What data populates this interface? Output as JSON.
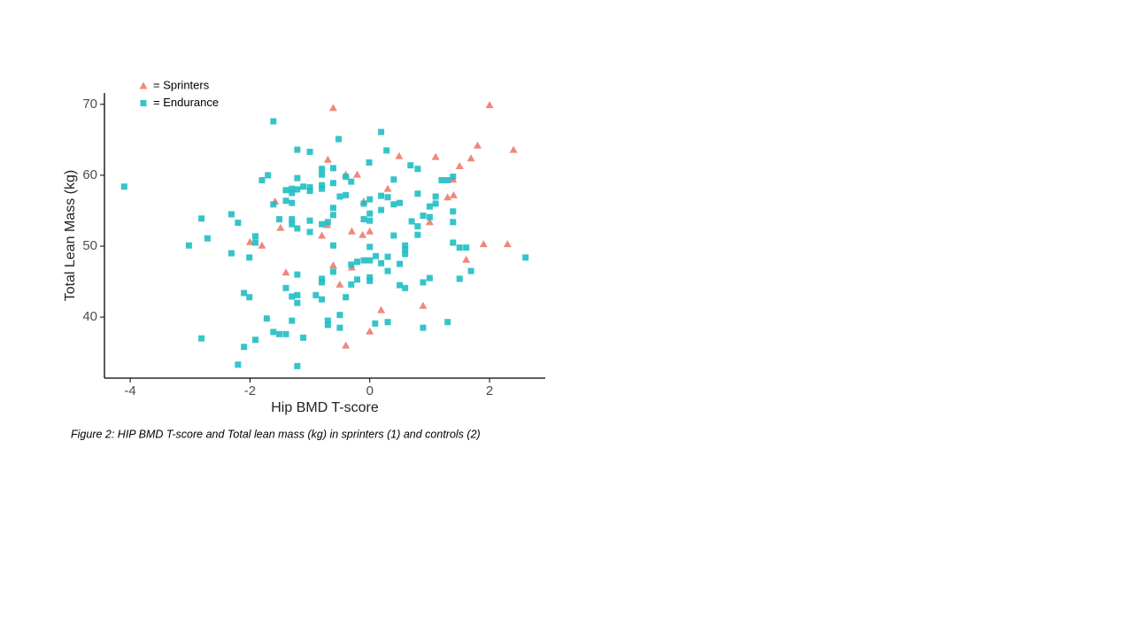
{
  "chart_data": {
    "type": "scatter",
    "xlabel": "Hip BMD T-score",
    "ylabel": "Total Lean Mass (kg)",
    "caption": "Figure 2: HIP BMD T-score and Total lean mass (kg) in sprinters (1) and controls (2)",
    "xlim": [
      -4.43,
      2.93
    ],
    "xticks": [
      -4,
      -2,
      0,
      2
    ],
    "ylim": [
      31.4,
      71.6
    ],
    "yticks": [
      40,
      50,
      60,
      70
    ],
    "legend": "top-left",
    "series": [
      {
        "name": "= Sprinters",
        "color": "#ee7b6e",
        "marker": "triangle",
        "x": [
          -0.61,
          2.0,
          1.8,
          2.4,
          -0.7,
          0.49,
          1.1,
          1.69,
          1.5,
          -0.4,
          -0.21,
          1.39,
          0.3,
          -0.1,
          1.3,
          1.4,
          -1.58,
          -1.49,
          -0.71,
          -0.8,
          -0.3,
          -0.12,
          0,
          1.0,
          -2.0,
          -1.8,
          1.9,
          2.3,
          1.61,
          -0.61,
          -0.3,
          -1.4,
          -0.5,
          0.19,
          0.89,
          0,
          -0.4
        ],
        "values": [
          69.5,
          69.9,
          64.2,
          63.6,
          62.2,
          62.7,
          62.6,
          62.4,
          61.3,
          60.1,
          60.1,
          59.4,
          58.1,
          56.3,
          56.9,
          57.2,
          56.3,
          52.6,
          53.0,
          51.5,
          52.1,
          51.6,
          52.1,
          53.4,
          50.6,
          50.1,
          50.3,
          50.3,
          48.1,
          47.3,
          47.0,
          46.3,
          44.6,
          41.0,
          41.6,
          38.0,
          36.0
        ]
      },
      {
        "name": "= Endurance",
        "color": "#1fbec4",
        "marker": "square",
        "x": [
          -4.1,
          -1.61,
          -0.52,
          0.19,
          -1.21,
          -1.0,
          0.28,
          0.68,
          0.8,
          -0.01,
          -0.8,
          -0.61,
          -0.8,
          -1.7,
          -1.8,
          -1.21,
          -0.61,
          -0.31,
          -0.4,
          0.4,
          1.2,
          1.3,
          1.39,
          -1.4,
          -1.3,
          -1.21,
          -1.11,
          -1.0,
          -1.0,
          -1.3,
          -0.8,
          -0.8,
          -0.5,
          -0.4,
          0.19,
          0.3,
          0.8,
          1.1,
          -1.61,
          -1.4,
          -1.3,
          -0.61,
          -0.1,
          0,
          0.4,
          0.5,
          1.1,
          1.0,
          0.19,
          0,
          1.39,
          -2.31,
          -2.81,
          -2.2,
          -1.51,
          -1.3,
          -1.3,
          -1.0,
          -0.8,
          -0.7,
          -0.61,
          -0.1,
          0,
          0.7,
          0.89,
          1.0,
          0.8,
          1.39,
          -1.21,
          -1.0,
          0.4,
          0.8,
          -1.91,
          -2.71,
          -3.02,
          -1.91,
          -0.61,
          0,
          0.59,
          0.59,
          0.59,
          1.39,
          1.5,
          1.61,
          -2.31,
          -2.01,
          0.1,
          -0.1,
          0,
          0.3,
          -0.21,
          -0.31,
          0.19,
          0.5,
          2.6,
          1.69,
          -0.61,
          0.3,
          -1.21,
          -0.8,
          -0.8,
          -0.21,
          0,
          0,
          1.5,
          1.0,
          0.89,
          -0.31,
          -1.4,
          0.5,
          0.59,
          -2.1,
          -2.01,
          -1.3,
          -1.21,
          -0.9,
          -0.8,
          -0.4,
          -1.21,
          -0.5,
          -1.72,
          -1.3,
          -0.7,
          -0.7,
          -0.5,
          0.09,
          0.3,
          0.89,
          1.3,
          -1.61,
          -1.51,
          -1.4,
          -1.11,
          -2.81,
          -1.91,
          -2.1,
          -2.2,
          -1.21
        ],
        "values": [
          58.4,
          67.6,
          65.1,
          66.1,
          63.6,
          63.3,
          63.5,
          61.4,
          60.9,
          61.8,
          60.9,
          61.0,
          60.1,
          60.0,
          59.3,
          59.6,
          58.9,
          59.1,
          59.8,
          59.4,
          59.3,
          59.3,
          59.8,
          57.9,
          58.1,
          58.0,
          58.4,
          58.3,
          57.8,
          57.5,
          58.6,
          58.1,
          57.0,
          57.2,
          57.1,
          56.9,
          57.4,
          57.0,
          55.9,
          56.4,
          56.1,
          55.4,
          56.0,
          56.6,
          55.9,
          56.1,
          56.0,
          55.6,
          55.1,
          54.6,
          54.9,
          54.5,
          53.9,
          53.3,
          53.8,
          53.8,
          53.1,
          53.6,
          53.1,
          53.4,
          54.4,
          53.8,
          53.6,
          53.5,
          54.3,
          54.1,
          52.8,
          53.4,
          52.5,
          52.0,
          51.5,
          51.6,
          51.4,
          51.1,
          50.1,
          50.5,
          50.1,
          49.9,
          50.1,
          49.5,
          48.9,
          50.5,
          49.8,
          49.8,
          49.0,
          48.4,
          48.6,
          48.0,
          48.0,
          48.5,
          47.8,
          47.4,
          47.6,
          47.5,
          48.4,
          46.5,
          46.4,
          46.5,
          46.0,
          45.4,
          44.9,
          45.3,
          45.6,
          45.1,
          45.4,
          45.5,
          44.9,
          44.6,
          44.1,
          44.5,
          44.1,
          43.4,
          42.8,
          42.9,
          43.1,
          43.1,
          42.5,
          42.8,
          42.0,
          40.3,
          39.8,
          39.5,
          39.5,
          38.9,
          38.5,
          39.1,
          39.3,
          38.5,
          39.3,
          37.9,
          37.6,
          37.6,
          37.1,
          37.0,
          36.8,
          35.8,
          33.3,
          33.1
        ]
      }
    ]
  }
}
